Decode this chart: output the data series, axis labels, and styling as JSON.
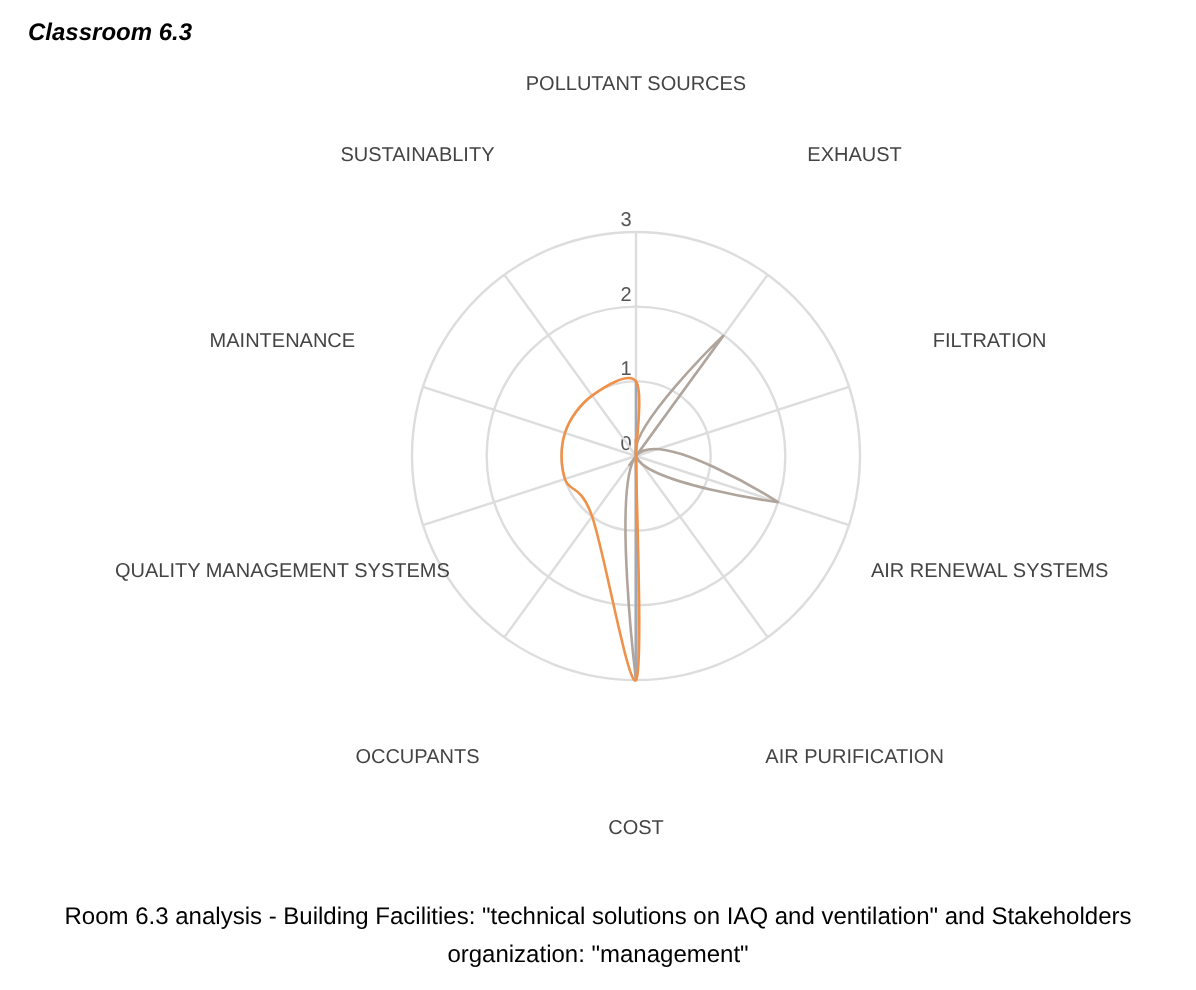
{
  "chart_data": {
    "type": "radar",
    "title": "Classroom 6.3",
    "categories": [
      "POLLUTANT SOURCES",
      "EXHAUST",
      "FILTRATION",
      "AIR RENEWAL SYSTEMS",
      "AIR PURIFICATION",
      "COST",
      "OCCUPANTS",
      "QUALITY MANAGEMENT SYSTEMS",
      "MAINTENANCE",
      "SUSTAINABLITY"
    ],
    "series": [
      {
        "color": "#b0a59c",
        "values": [
          0,
          2,
          0,
          2,
          0,
          3,
          0,
          0,
          0,
          0
        ]
      },
      {
        "color": "#9ea8b6",
        "values": [
          1,
          0,
          0,
          0,
          0,
          3,
          0,
          0,
          0,
          0
        ]
      },
      {
        "color": "#f0914a",
        "values": [
          1,
          0,
          0,
          0,
          0,
          3,
          1,
          1,
          1,
          1
        ]
      }
    ],
    "ylim": [
      0,
      3
    ],
    "yticks": [
      0,
      1,
      2,
      3
    ],
    "grid": true,
    "annotations": [
      "Room 6.3 analysis - Building Facilities: \"technical solutions on IAQ and ventilation\" and Stakeholders organization: \"management\""
    ]
  }
}
